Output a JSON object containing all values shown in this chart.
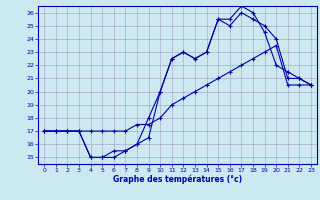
{
  "title": "Graphe des températures (°c)",
  "bg_color": "#cce8f0",
  "grid_color": "#aaaacc",
  "line_color": "#0000aa",
  "xlim": [
    -0.5,
    23.5
  ],
  "ylim": [
    14.5,
    26.5
  ],
  "xticks": [
    0,
    1,
    2,
    3,
    4,
    5,
    6,
    7,
    8,
    9,
    10,
    11,
    12,
    13,
    14,
    15,
    16,
    17,
    18,
    19,
    20,
    21,
    22,
    23
  ],
  "yticks": [
    15,
    16,
    17,
    18,
    19,
    20,
    21,
    22,
    23,
    24,
    25,
    26
  ],
  "line1_x": [
    0,
    1,
    2,
    3,
    4,
    5,
    6,
    7,
    8,
    9,
    10,
    11,
    12,
    13,
    14,
    15,
    16,
    17,
    18,
    19,
    20,
    21,
    22,
    23
  ],
  "line1_y": [
    17.0,
    17.0,
    17.0,
    17.0,
    15.0,
    15.0,
    15.0,
    15.5,
    16.0,
    18.0,
    20.0,
    22.5,
    23.0,
    22.5,
    23.0,
    25.5,
    25.5,
    26.5,
    26.0,
    24.5,
    22.0,
    21.5,
    21.0,
    20.5
  ],
  "line2_x": [
    0,
    1,
    2,
    3,
    4,
    5,
    6,
    7,
    8,
    9,
    10,
    11,
    12,
    13,
    14,
    15,
    16,
    17,
    18,
    19,
    20,
    21,
    22,
    23
  ],
  "line2_y": [
    17.0,
    17.0,
    17.0,
    17.0,
    15.0,
    15.0,
    15.5,
    15.5,
    16.0,
    16.5,
    20.0,
    22.5,
    23.0,
    22.5,
    23.0,
    25.5,
    25.0,
    26.0,
    25.5,
    25.0,
    24.0,
    21.0,
    21.0,
    20.5
  ],
  "line3_x": [
    0,
    1,
    2,
    3,
    4,
    5,
    6,
    7,
    8,
    9,
    10,
    11,
    12,
    13,
    14,
    15,
    16,
    17,
    18,
    19,
    20,
    21,
    22,
    23
  ],
  "line3_y": [
    17.0,
    17.0,
    17.0,
    17.0,
    17.0,
    17.0,
    17.0,
    17.0,
    17.5,
    17.5,
    18.0,
    19.0,
    19.5,
    20.0,
    20.5,
    21.0,
    21.5,
    22.0,
    22.5,
    23.0,
    23.5,
    20.5,
    20.5,
    20.5
  ]
}
